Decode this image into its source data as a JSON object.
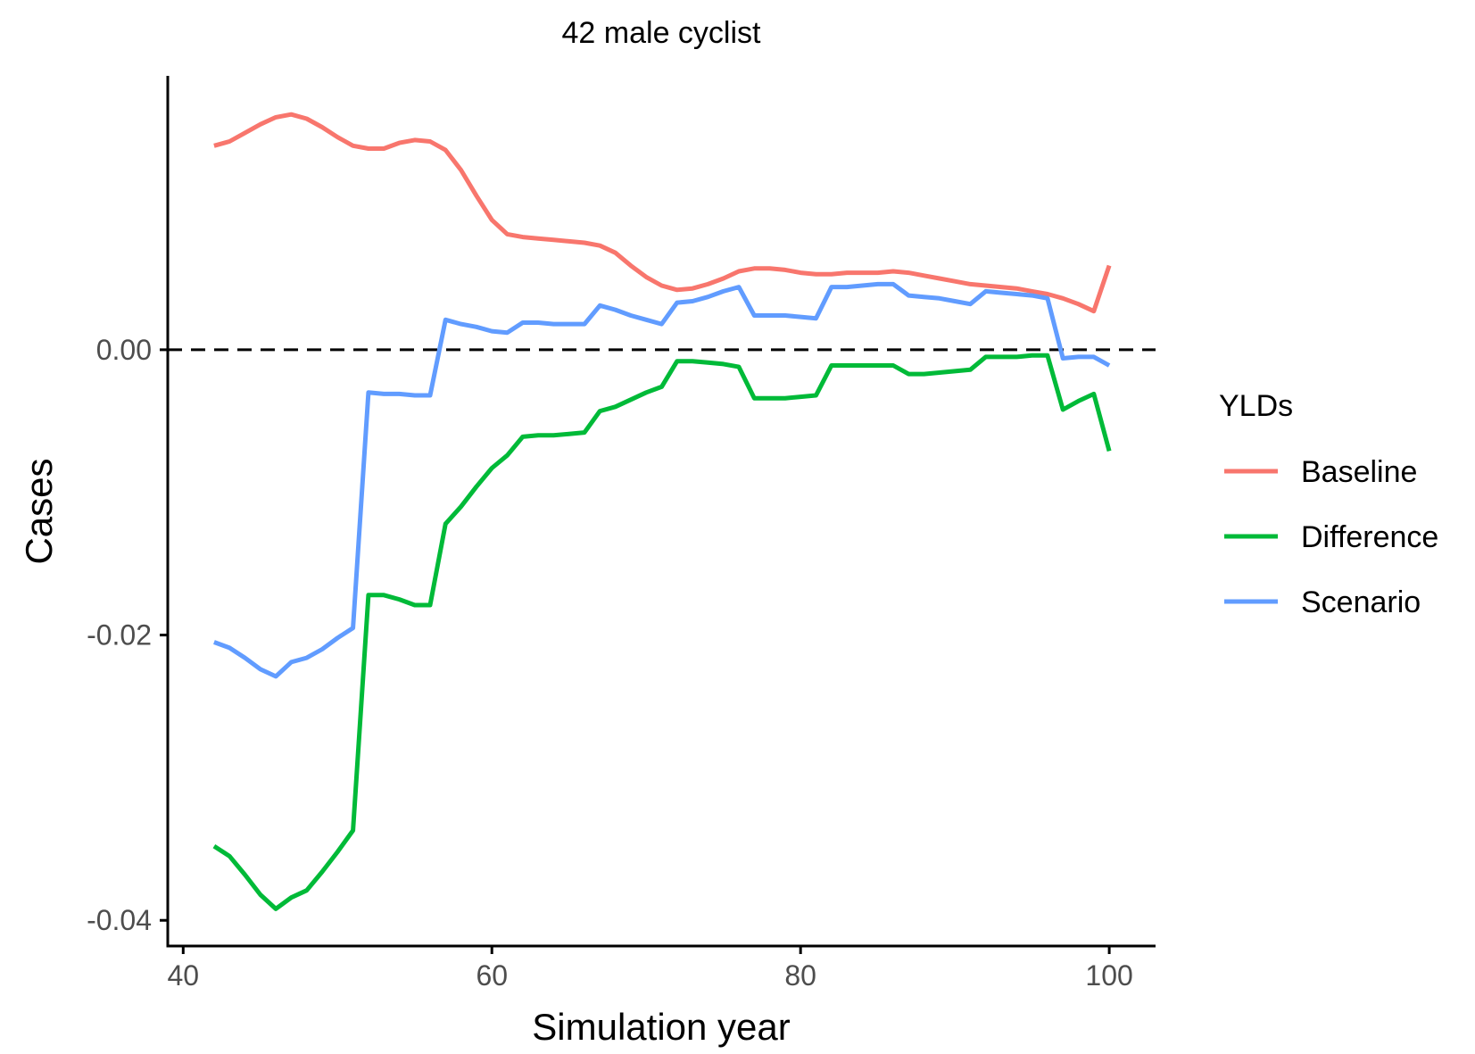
{
  "chart_data": {
    "type": "line",
    "title": "42 male cyclist",
    "xlabel": "Simulation year",
    "ylabel": "Cases",
    "xlim": [
      39,
      103
    ],
    "ylim": [
      -0.0418,
      0.0192
    ],
    "x_ticks": [
      40,
      60,
      80,
      100
    ],
    "x_tick_labels": [
      "40",
      "60",
      "80",
      "100"
    ],
    "y_ticks": [
      -0.04,
      -0.02,
      0.0
    ],
    "y_tick_labels": [
      "-0.04",
      "-0.02",
      "0.00"
    ],
    "reference_line": {
      "y": 0,
      "style": "dashed",
      "color": "#000000"
    },
    "grid": false,
    "legend": {
      "title": "YLDs",
      "position": "right"
    },
    "series": [
      {
        "name": "Baseline",
        "color": "#F8766D",
        "x": [
          42,
          43,
          44,
          45,
          46,
          47,
          48,
          49,
          50,
          51,
          52,
          53,
          54,
          55,
          56,
          57,
          58,
          59,
          60,
          61,
          62,
          63,
          64,
          65,
          66,
          67,
          68,
          69,
          70,
          71,
          72,
          73,
          74,
          75,
          76,
          77,
          78,
          79,
          80,
          81,
          82,
          83,
          84,
          85,
          86,
          87,
          88,
          89,
          90,
          91,
          92,
          93,
          94,
          95,
          96,
          97,
          98,
          99,
          100
        ],
        "values": [
          0.0143,
          0.0146,
          0.0152,
          0.0158,
          0.0163,
          0.0165,
          0.0162,
          0.0156,
          0.0149,
          0.0143,
          0.0141,
          0.0141,
          0.0145,
          0.0147,
          0.0146,
          0.014,
          0.0126,
          0.0108,
          0.0091,
          0.0081,
          0.0079,
          0.0078,
          0.0077,
          0.0076,
          0.0075,
          0.0073,
          0.0068,
          0.0059,
          0.0051,
          0.0045,
          0.0042,
          0.0043,
          0.0046,
          0.005,
          0.0055,
          0.0057,
          0.0057,
          0.0056,
          0.0054,
          0.0053,
          0.0053,
          0.0054,
          0.0054,
          0.0054,
          0.0055,
          0.0054,
          0.0052,
          0.005,
          0.0048,
          0.0046,
          0.0045,
          0.0044,
          0.0043,
          0.0041,
          0.0039,
          0.0036,
          0.0032,
          0.0027,
          0.0059
        ]
      },
      {
        "name": "Difference",
        "color": "#00BA38",
        "x": [
          42,
          43,
          44,
          45,
          46,
          47,
          48,
          49,
          50,
          51,
          52,
          53,
          54,
          55,
          56,
          57,
          58,
          59,
          60,
          61,
          62,
          63,
          64,
          65,
          66,
          67,
          68,
          69,
          70,
          71,
          72,
          73,
          74,
          75,
          76,
          77,
          78,
          79,
          80,
          81,
          82,
          83,
          84,
          85,
          86,
          87,
          88,
          89,
          90,
          91,
          92,
          93,
          94,
          95,
          96,
          97,
          98,
          99,
          100
        ],
        "values": [
          -0.0348,
          -0.0355,
          -0.0368,
          -0.0382,
          -0.0392,
          -0.0384,
          -0.0379,
          -0.0366,
          -0.0352,
          -0.0337,
          -0.0172,
          -0.0172,
          -0.0175,
          -0.0179,
          -0.0179,
          -0.0122,
          -0.011,
          -0.0096,
          -0.0083,
          -0.0074,
          -0.0061,
          -0.006,
          -0.006,
          -0.0059,
          -0.0058,
          -0.0043,
          -0.004,
          -0.0035,
          -0.003,
          -0.0026,
          -0.0008,
          -0.0008,
          -0.0009,
          -0.001,
          -0.0012,
          -0.0034,
          -0.0034,
          -0.0034,
          -0.0033,
          -0.0032,
          -0.0011,
          -0.0011,
          -0.0011,
          -0.0011,
          -0.0011,
          -0.0017,
          -0.0017,
          -0.0016,
          -0.0015,
          -0.0014,
          -0.0005,
          -0.0005,
          -0.0005,
          -0.0004,
          -0.0004,
          -0.0042,
          -0.0036,
          -0.0031,
          -0.0071
        ]
      },
      {
        "name": "Scenario",
        "color": "#619CFF",
        "x": [
          42,
          43,
          44,
          45,
          46,
          47,
          48,
          49,
          50,
          51,
          52,
          53,
          54,
          55,
          56,
          57,
          58,
          59,
          60,
          61,
          62,
          63,
          64,
          65,
          66,
          67,
          68,
          69,
          70,
          71,
          72,
          73,
          74,
          75,
          76,
          77,
          78,
          79,
          80,
          81,
          82,
          83,
          84,
          85,
          86,
          87,
          88,
          89,
          90,
          91,
          92,
          93,
          94,
          95,
          96,
          97,
          98,
          99,
          100
        ],
        "values": [
          -0.0205,
          -0.0209,
          -0.0216,
          -0.0224,
          -0.0229,
          -0.0219,
          -0.0216,
          -0.021,
          -0.0202,
          -0.0195,
          -0.003,
          -0.0031,
          -0.0031,
          -0.0032,
          -0.0032,
          0.0021,
          0.0018,
          0.0016,
          0.0013,
          0.0012,
          0.0019,
          0.0019,
          0.0018,
          0.0018,
          0.0018,
          0.0031,
          0.0028,
          0.0024,
          0.0021,
          0.0018,
          0.0033,
          0.0034,
          0.0037,
          0.0041,
          0.0044,
          0.0024,
          0.0024,
          0.0024,
          0.0023,
          0.0022,
          0.0044,
          0.0044,
          0.0045,
          0.0046,
          0.0046,
          0.0038,
          0.0037,
          0.0036,
          0.0034,
          0.0032,
          0.0041,
          0.004,
          0.0039,
          0.0038,
          0.0036,
          -0.0006,
          -0.0005,
          -0.0005,
          -0.0011
        ]
      }
    ]
  }
}
